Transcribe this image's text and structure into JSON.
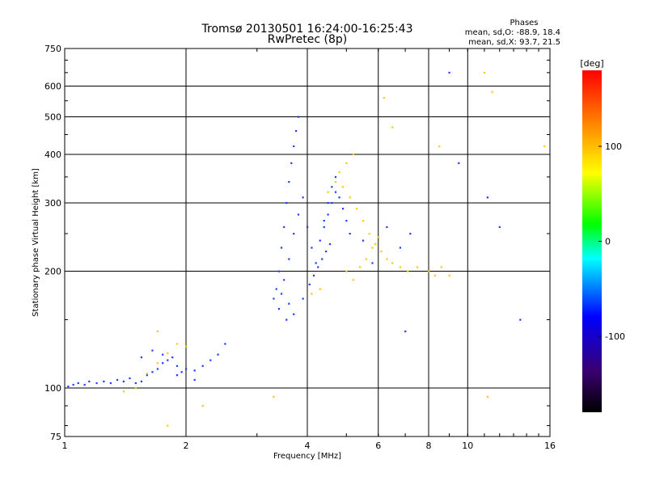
{
  "header": {
    "title": "Tromsø 20130501 16:24:00-16:25:43",
    "subtitle": "RwPretec (8p)",
    "stats_title": "Phases",
    "stats_o": "mean, sd,O: -88.9, 18.4",
    "stats_x": "mean, sd,X:  93.7, 21.5"
  },
  "chart_data": {
    "type": "scatter",
    "title": "Tromsø 20130501 16:24:00-16:25:43",
    "subtitle": "RwPretec (8p)",
    "xlabel": "Frequency [MHz]",
    "ylabel": "Stationary phase Virtual Height [km]",
    "xscale": "log",
    "yscale": "log",
    "xlim": [
      1,
      16
    ],
    "ylim": [
      75,
      750
    ],
    "xticks": [
      1,
      2,
      4,
      6,
      8,
      10,
      16
    ],
    "yticks": [
      75,
      100,
      200,
      300,
      400,
      500,
      600,
      750
    ],
    "grid": true,
    "colorbar": {
      "label": "[deg]",
      "range": [
        -180,
        180
      ],
      "ticks": [
        100,
        0,
        -100
      ],
      "colormap": [
        "#000000",
        "#3a0070",
        "#0000ff",
        "#00ffff",
        "#00ff00",
        "#ffff00",
        "#ff8000",
        "#ff0000"
      ]
    },
    "series": [
      {
        "name": "O",
        "color": "#1e3cff",
        "values": [
          [
            1.02,
            101
          ],
          [
            1.05,
            102
          ],
          [
            1.08,
            103
          ],
          [
            1.12,
            102
          ],
          [
            1.15,
            104
          ],
          [
            1.2,
            103
          ],
          [
            1.25,
            104
          ],
          [
            1.3,
            103
          ],
          [
            1.35,
            105
          ],
          [
            1.4,
            104
          ],
          [
            1.45,
            106
          ],
          [
            1.5,
            103
          ],
          [
            1.55,
            104
          ],
          [
            1.6,
            108
          ],
          [
            1.65,
            110
          ],
          [
            1.7,
            112
          ],
          [
            1.75,
            116
          ],
          [
            1.8,
            118
          ],
          [
            1.85,
            120
          ],
          [
            1.9,
            114
          ],
          [
            1.95,
            110
          ],
          [
            2.0,
            112
          ],
          [
            2.1,
            111
          ],
          [
            2.2,
            114
          ],
          [
            2.3,
            118
          ],
          [
            2.4,
            122
          ],
          [
            2.5,
            130
          ],
          [
            1.55,
            120
          ],
          [
            1.65,
            125
          ],
          [
            1.75,
            122
          ],
          [
            3.3,
            170
          ],
          [
            3.35,
            180
          ],
          [
            3.4,
            200
          ],
          [
            3.45,
            230
          ],
          [
            3.5,
            260
          ],
          [
            3.55,
            300
          ],
          [
            3.6,
            340
          ],
          [
            3.65,
            380
          ],
          [
            3.7,
            420
          ],
          [
            3.75,
            460
          ],
          [
            3.8,
            500
          ],
          [
            3.4,
            160
          ],
          [
            3.5,
            190
          ],
          [
            3.6,
            215
          ],
          [
            3.7,
            250
          ],
          [
            3.8,
            280
          ],
          [
            3.9,
            310
          ],
          [
            4.0,
            260
          ],
          [
            4.1,
            230
          ],
          [
            4.2,
            210
          ],
          [
            4.3,
            240
          ],
          [
            4.4,
            270
          ],
          [
            4.5,
            300
          ],
          [
            4.6,
            330
          ],
          [
            4.7,
            350
          ],
          [
            4.8,
            310
          ],
          [
            4.9,
            290
          ],
          [
            5.0,
            270
          ],
          [
            5.1,
            250
          ],
          [
            4.05,
            185
          ],
          [
            4.15,
            195
          ],
          [
            4.25,
            205
          ],
          [
            4.35,
            215
          ],
          [
            4.45,
            225
          ],
          [
            4.55,
            235
          ],
          [
            3.9,
            170
          ],
          [
            3.7,
            155
          ],
          [
            3.6,
            165
          ],
          [
            3.55,
            150
          ],
          [
            3.45,
            175
          ],
          [
            4.6,
            300
          ],
          [
            4.7,
            320
          ],
          [
            4.5,
            280
          ],
          [
            4.4,
            260
          ],
          [
            5.5,
            240
          ],
          [
            5.8,
            210
          ],
          [
            6.3,
            260
          ],
          [
            6.8,
            230
          ],
          [
            7.2,
            250
          ],
          [
            9.0,
            650
          ],
          [
            9.5,
            380
          ],
          [
            11.2,
            310
          ],
          [
            12.0,
            260
          ],
          [
            13.5,
            150
          ],
          [
            7.0,
            140
          ],
          [
            2.1,
            105
          ],
          [
            1.9,
            108
          ]
        ]
      },
      {
        "name": "X",
        "color": "#ffc800",
        "values": [
          [
            1.4,
            98
          ],
          [
            1.5,
            100
          ],
          [
            1.6,
            109
          ],
          [
            1.7,
            116
          ],
          [
            1.8,
            123
          ],
          [
            1.9,
            130
          ],
          [
            2.0,
            128
          ],
          [
            1.7,
            140
          ],
          [
            4.5,
            320
          ],
          [
            4.7,
            340
          ],
          [
            4.9,
            330
          ],
          [
            5.1,
            310
          ],
          [
            5.3,
            290
          ],
          [
            5.5,
            270
          ],
          [
            5.7,
            250
          ],
          [
            5.9,
            235
          ],
          [
            6.1,
            225
          ],
          [
            6.3,
            215
          ],
          [
            5.0,
            200
          ],
          [
            5.2,
            190
          ],
          [
            5.4,
            205
          ],
          [
            5.6,
            215
          ],
          [
            5.8,
            230
          ],
          [
            6.0,
            245
          ],
          [
            4.8,
            360
          ],
          [
            5.0,
            380
          ],
          [
            5.2,
            400
          ],
          [
            6.5,
            210
          ],
          [
            6.8,
            205
          ],
          [
            7.1,
            200
          ],
          [
            7.5,
            205
          ],
          [
            8.0,
            200
          ],
          [
            8.3,
            195
          ],
          [
            8.6,
            205
          ],
          [
            9.0,
            195
          ],
          [
            11.0,
            650
          ],
          [
            11.5,
            580
          ],
          [
            4.3,
            180
          ],
          [
            4.1,
            175
          ],
          [
            6.2,
            560
          ],
          [
            6.5,
            470
          ],
          [
            8.5,
            420
          ],
          [
            15.5,
            420
          ],
          [
            11.2,
            95
          ],
          [
            1.8,
            80
          ],
          [
            3.3,
            95
          ],
          [
            2.2,
            90
          ]
        ]
      }
    ]
  }
}
